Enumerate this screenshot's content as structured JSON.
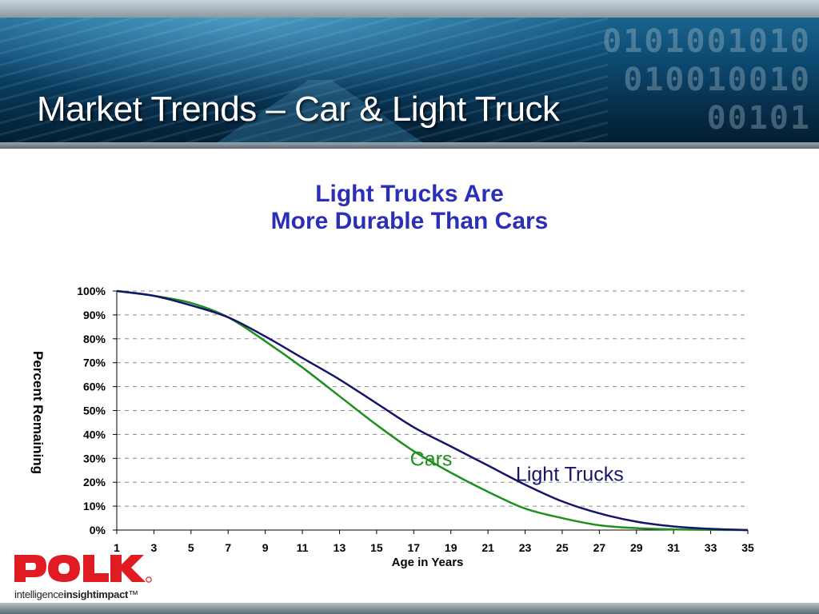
{
  "slide": {
    "title": "Market Trends – Car & Light Truck",
    "banner_binary": "0101001010\n010010010\n00101"
  },
  "logo": {
    "name": "POLK",
    "tagline_parts": [
      "intelligence",
      "insight",
      "impact",
      "™"
    ]
  },
  "colors": {
    "title_blue": "#2b2fb8",
    "cars_green": "#1f8f1f",
    "trucks_navy": "#15156b",
    "logo_red": "#e01b22"
  },
  "chart_data": {
    "type": "line",
    "title_lines": [
      "Light Trucks Are",
      "More Durable Than Cars"
    ],
    "xlabel": "Age in Years",
    "ylabel": "Percent Remaining",
    "xlim": [
      1,
      35
    ],
    "ylim": [
      0,
      100
    ],
    "x_ticks": [
      1,
      3,
      5,
      7,
      9,
      11,
      13,
      15,
      17,
      19,
      21,
      23,
      25,
      27,
      29,
      31,
      33,
      35
    ],
    "y_ticks": [
      "0%",
      "10%",
      "20%",
      "30%",
      "40%",
      "50%",
      "60%",
      "70%",
      "80%",
      "90%",
      "100%"
    ],
    "grid": "horizontal-dashed",
    "series": [
      {
        "name": "Cars",
        "color": "#1f8f1f",
        "x": [
          1,
          3,
          5,
          7,
          9,
          11,
          13,
          15,
          17,
          19,
          21,
          23,
          25,
          27,
          29,
          31,
          33,
          35
        ],
        "y": [
          100,
          98,
          95,
          89,
          79,
          68,
          56,
          44,
          33,
          24,
          16,
          9,
          5,
          2,
          0.8,
          0.3,
          0.1,
          0
        ]
      },
      {
        "name": "Light Trucks",
        "color": "#15156b",
        "x": [
          1,
          3,
          5,
          7,
          9,
          11,
          13,
          15,
          17,
          19,
          21,
          23,
          25,
          27,
          29,
          31,
          33,
          35
        ],
        "y": [
          100,
          98,
          94,
          89,
          81,
          72,
          63,
          53,
          43,
          35,
          27,
          19,
          12,
          7,
          3.5,
          1.5,
          0.5,
          0
        ]
      }
    ],
    "annotations": [
      {
        "text": "Cars",
        "x": 16.8,
        "y": 27,
        "color": "#1f8f1f"
      },
      {
        "text": "Light Trucks",
        "x": 22.5,
        "y": 20.5,
        "color": "#15156b"
      }
    ]
  }
}
